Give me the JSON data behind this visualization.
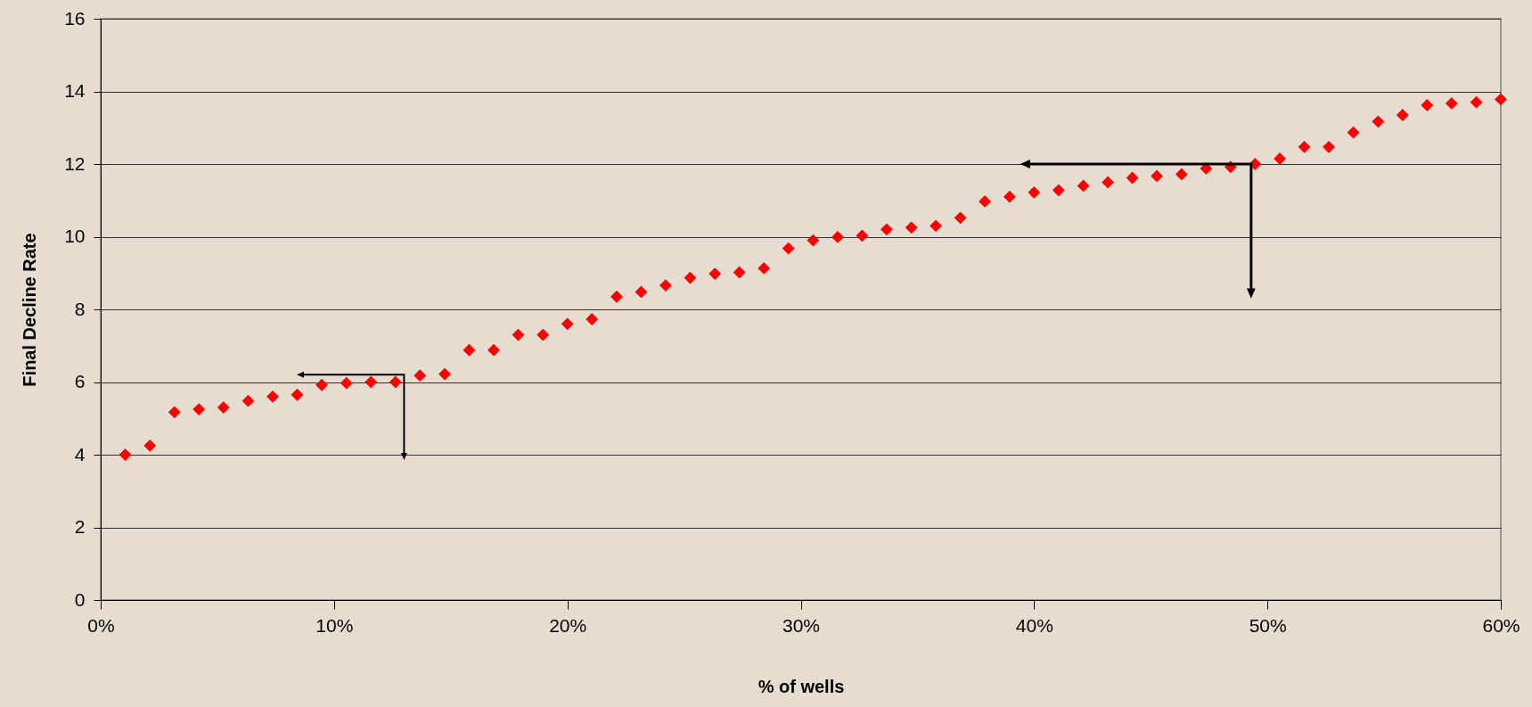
{
  "chart_data": {
    "type": "scatter",
    "xlabel": "% of wells",
    "ylabel": "Final Decline Rate",
    "x": [
      1.05,
      2.11,
      3.16,
      4.21,
      5.26,
      6.32,
      7.37,
      8.42,
      9.47,
      10.53,
      11.58,
      12.63,
      13.68,
      14.74,
      15.79,
      16.84,
      17.89,
      18.95,
      20,
      21.05,
      22.11,
      23.16,
      24.21,
      25.26,
      26.32,
      27.37,
      28.42,
      29.47,
      30.53,
      31.58,
      32.63,
      33.68,
      34.74,
      35.79,
      36.84,
      37.89,
      38.95,
      40,
      41.05,
      42.11,
      43.16,
      44.21,
      45.26,
      46.32,
      47.37,
      48.42,
      49.47,
      50.53,
      51.58,
      52.63,
      53.68,
      54.74,
      55.79,
      56.84,
      57.89,
      58.95,
      60
    ],
    "series": [
      {
        "color": "#ff0000",
        "values": [
          4.0,
          4.25,
          5.17,
          5.25,
          5.3,
          5.48,
          5.6,
          5.65,
          5.92,
          5.97,
          6.0,
          6.0,
          6.18,
          6.22,
          6.88,
          6.88,
          7.3,
          7.3,
          7.6,
          7.73,
          8.35,
          8.48,
          8.66,
          8.87,
          8.98,
          9.02,
          9.13,
          9.68,
          9.9,
          9.99,
          10.03,
          10.2,
          10.25,
          10.3,
          10.52,
          10.97,
          11.1,
          11.22,
          11.28,
          11.4,
          11.5,
          11.62,
          11.67,
          11.72,
          11.88,
          11.92,
          12.0,
          12.15,
          12.47,
          12.47,
          12.87,
          13.17,
          13.35,
          13.62,
          13.67,
          13.7,
          13.78
        ]
      }
    ],
    "xlim": [
      0,
      60
    ],
    "xticks": [
      {
        "value": 0,
        "label": "0%"
      },
      {
        "value": 10,
        "label": "10%"
      },
      {
        "value": 20,
        "label": "20%"
      },
      {
        "value": 30,
        "label": "30%"
      },
      {
        "value": 40,
        "label": "40%"
      },
      {
        "value": 50,
        "label": "50%"
      },
      {
        "value": 60,
        "label": "60%"
      }
    ],
    "ylim": [
      0,
      16
    ],
    "yticks": [
      0,
      2,
      4,
      6,
      8,
      10,
      12,
      14,
      16
    ],
    "grid": "y",
    "marker": "diamond"
  }
}
